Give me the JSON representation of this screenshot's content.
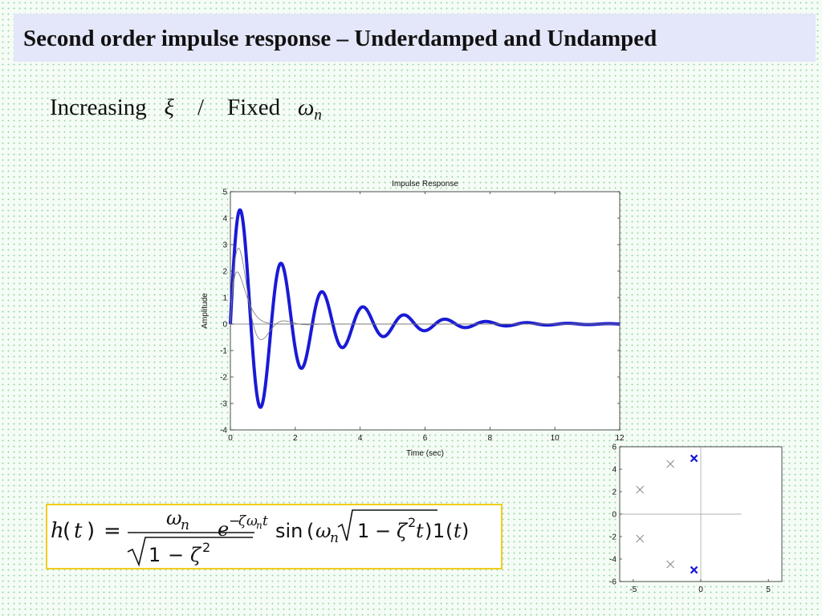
{
  "slide": {
    "title": "Second order impulse response – Underdamped and Undamped",
    "subtitle": {
      "word_increasing": "Increasing",
      "xi_symbol": "ξ",
      "separator": "/",
      "word_fixed": "Fixed",
      "omega_symbol": "ω",
      "omega_subscript": "n"
    },
    "formula": {
      "h": "h",
      "t": "t",
      "omega": "ω",
      "n": "n",
      "one": "1",
      "minus": "−",
      "zeta": "ζ",
      "two": "2",
      "e": "e",
      "sin": "sin",
      "equals": "="
    },
    "colors": {
      "title_band": "#e4e6f9",
      "formula_border": "#f2cc1c",
      "series_main": "#1a1ad6",
      "series_thin": "#777777"
    }
  },
  "chart_data": [
    {
      "type": "line",
      "title": "Impulse Response",
      "xlabel": "Time (sec)",
      "ylabel": "Amplitude",
      "xlim": [
        0,
        12
      ],
      "ylim": [
        -4,
        5
      ],
      "xticks": [
        0,
        2,
        4,
        6,
        8,
        10,
        12
      ],
      "yticks": [
        -4,
        -3,
        -2,
        -1,
        0,
        1,
        2,
        3,
        4,
        5
      ],
      "series": [
        {
          "wn": 5,
          "zeta": 0.1,
          "style": "thick-blue"
        },
        {
          "wn": 5,
          "zeta": 0.45,
          "style": "thin-gray"
        },
        {
          "wn": 5,
          "zeta": 0.9,
          "style": "thin-gray"
        }
      ]
    },
    {
      "type": "scatter",
      "title": "",
      "xlim": [
        -6,
        6
      ],
      "ylim": [
        -6,
        6
      ],
      "xticks": [
        -5,
        0,
        5
      ],
      "yticks": [
        -6,
        -4,
        -2,
        0,
        2,
        4,
        6
      ],
      "poles": [
        {
          "x": -0.5,
          "y": 4.97,
          "style": "blue"
        },
        {
          "x": -0.5,
          "y": -4.97,
          "style": "blue"
        },
        {
          "x": -2.25,
          "y": 4.47,
          "style": "gray"
        },
        {
          "x": -2.25,
          "y": -4.47,
          "style": "gray"
        },
        {
          "x": -4.5,
          "y": 2.18,
          "style": "gray"
        },
        {
          "x": -4.5,
          "y": -2.18,
          "style": "gray"
        }
      ]
    }
  ]
}
